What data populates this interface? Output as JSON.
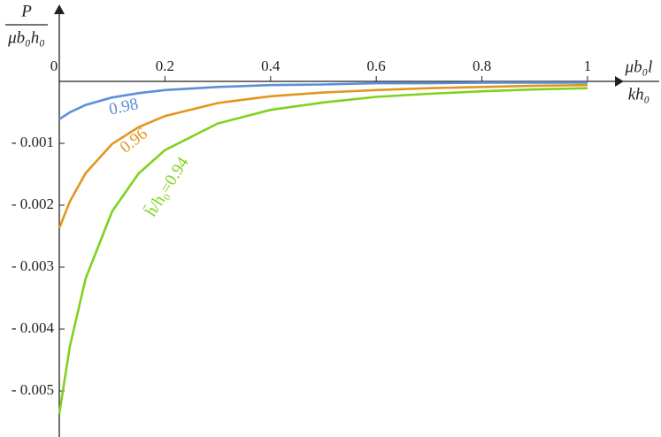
{
  "chart_data": {
    "type": "line",
    "y_label": {
      "numerator": "P",
      "denominator": "μb₀h₀"
    },
    "x_label": {
      "numerator": "μb₀l",
      "denominator": "kh₀"
    },
    "x": [
      0,
      0.02,
      0.05,
      0.1,
      0.15,
      0.2,
      0.3,
      0.4,
      0.5,
      0.6,
      0.7,
      0.8,
      0.9,
      1
    ],
    "series": [
      {
        "name": "0.98",
        "color": "#5b8fd8",
        "values": [
          -0.00061,
          -0.0005,
          -0.00038,
          -0.00026,
          -0.00019,
          -0.00014,
          -9e-05,
          -6e-05,
          -5e-05,
          -3e-05,
          -3e-05,
          -2e-05,
          -2e-05,
          -2e-05
        ]
      },
      {
        "name": "0.96",
        "color": "#e3961e",
        "values": [
          -0.00237,
          -0.00194,
          -0.00148,
          -0.00101,
          -0.00074,
          -0.00056,
          -0.00035,
          -0.00024,
          -0.00018,
          -0.00014,
          -0.00011,
          -9e-05,
          -7e-05,
          -6e-05
        ]
      },
      {
        "name": "h̄/h₀=0.94",
        "color": "#7fd11f",
        "values": [
          -0.00537,
          -0.00428,
          -0.00318,
          -0.0021,
          -0.00149,
          -0.00111,
          -0.00068,
          -0.00046,
          -0.00034,
          -0.00025,
          -0.0002,
          -0.00016,
          -0.00013,
          -0.00011
        ]
      }
    ],
    "xlim": [
      0,
      1.052
    ],
    "ylim": [
      -0.00569,
      0.00117
    ],
    "xticks": [
      0,
      0.2,
      0.4,
      0.6,
      0.8,
      1
    ],
    "yticks": [
      {
        "value": -0.001,
        "label": "- 0.001"
      },
      {
        "value": -0.002,
        "label": "- 0.002"
      },
      {
        "value": -0.003,
        "label": "- 0.003"
      },
      {
        "value": -0.004,
        "label": "- 0.004"
      },
      {
        "value": -0.005,
        "label": "- 0.005"
      }
    ]
  }
}
